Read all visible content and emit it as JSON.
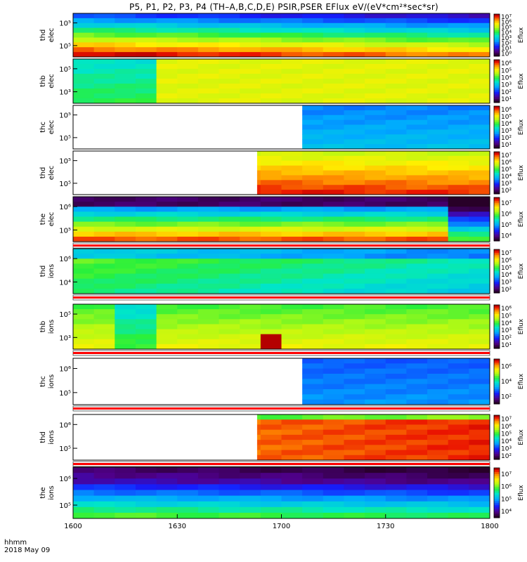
{
  "title": "P5, P1, P2, P3, P4 (TH–A,B,C,D,E) PSIR,PSER EFlux eV/(eV*cm²*sec*sr)",
  "footer": {
    "line1": "hhmm",
    "line2": "2018 May 09"
  },
  "x_ticks": [
    "1600",
    "1630",
    "1700",
    "1730",
    "1800"
  ],
  "chart_data": {
    "type": "heatmap",
    "x_range": [
      "16:00",
      "18:00"
    ],
    "colormap": "rainbow (purple-blue-cyan-green-yellow-red)",
    "panels": [
      {
        "probe": "thd",
        "species": "elec",
        "y_ticks": [
          "10⁵",
          "10⁵"
        ],
        "cbar_label": "Eflux",
        "cbar_ticks": [
          "10⁷",
          "10⁶",
          "10⁵",
          "10⁴",
          "10³",
          "10²",
          "10¹",
          "10⁰"
        ],
        "ylabels": [
          "thd",
          "elec"
        ],
        "data_start": 0
      },
      {
        "probe": "thb",
        "species": "elec",
        "y_ticks": [
          "10⁵",
          "10³"
        ],
        "cbar_label": "Eflux",
        "cbar_ticks": [
          "10⁶",
          "10⁵",
          "10⁴",
          "10³",
          "10²",
          "10¹"
        ],
        "ylabels": [
          "thb",
          "elec"
        ],
        "data_start": 0
      },
      {
        "probe": "thc",
        "species": "elec",
        "y_ticks": [
          "10⁵",
          "10⁵"
        ],
        "cbar_label": "Eflux",
        "cbar_ticks": [
          "10⁶",
          "10⁵",
          "10⁴",
          "10³",
          "10²",
          "10¹"
        ],
        "ylabels": [
          "thc",
          "elec"
        ],
        "data_start": "17:06"
      },
      {
        "probe": "thd",
        "species": "elec",
        "y_ticks": [
          "10⁵",
          "10⁵"
        ],
        "cbar_label": "Eflux",
        "cbar_ticks": [
          "10⁷",
          "10⁶",
          "10⁵",
          "10⁴",
          "10³",
          "10²"
        ],
        "ylabels": [
          "thd",
          "elec"
        ],
        "data_start": "16:53"
      },
      {
        "probe": "the",
        "species": "elec",
        "y_ticks": [
          "10⁶",
          "10⁵"
        ],
        "cbar_label": "Eflux",
        "cbar_ticks": [
          "10⁷",
          "10⁶",
          "10⁵",
          "10⁴"
        ],
        "ylabels": [
          "the",
          "elec"
        ],
        "data_start": 0
      },
      {
        "probe": "thd",
        "species": "ions",
        "y_ticks": [
          "10⁶",
          "10⁴"
        ],
        "cbar_label": "Eflux",
        "cbar_ticks": [
          "10⁷",
          "10⁶",
          "10⁵",
          "10⁴",
          "10³",
          "10²"
        ],
        "ylabels": [
          "thd",
          "ions"
        ],
        "data_start": 0
      },
      {
        "probe": "thb",
        "species": "ions",
        "y_ticks": [
          "10⁵",
          "10³"
        ],
        "cbar_label": "Eflux",
        "cbar_ticks": [
          "10⁶",
          "10⁵",
          "10⁴",
          "10³",
          "10²",
          "10¹"
        ],
        "ylabels": [
          "thb",
          "ions"
        ],
        "data_start": 0
      },
      {
        "probe": "thc",
        "species": "ions",
        "y_ticks": [
          "10⁶",
          "10⁵"
        ],
        "cbar_label": "Eflux",
        "cbar_ticks": [
          "10⁶",
          "10⁴",
          "10²"
        ],
        "ylabels": [
          "thc",
          "ions"
        ],
        "data_start": "17:06"
      },
      {
        "probe": "thd",
        "species": "ions",
        "y_ticks": [
          "10⁶",
          "10⁵"
        ],
        "cbar_label": "Eflux",
        "cbar_ticks": [
          "10⁷",
          "10⁶",
          "10⁵",
          "10⁴",
          "10³",
          "10²"
        ],
        "ylabels": [
          "thd",
          "ions"
        ],
        "data_start": "16:53"
      },
      {
        "probe": "the",
        "species": "ions",
        "y_ticks": [
          "10⁶",
          "10⁵"
        ],
        "cbar_label": "Eflux",
        "cbar_ticks": [
          "10⁷",
          "10⁶",
          "10⁵",
          "10⁴"
        ],
        "ylabels": [
          "the",
          "ions"
        ],
        "data_start": 0
      }
    ]
  }
}
